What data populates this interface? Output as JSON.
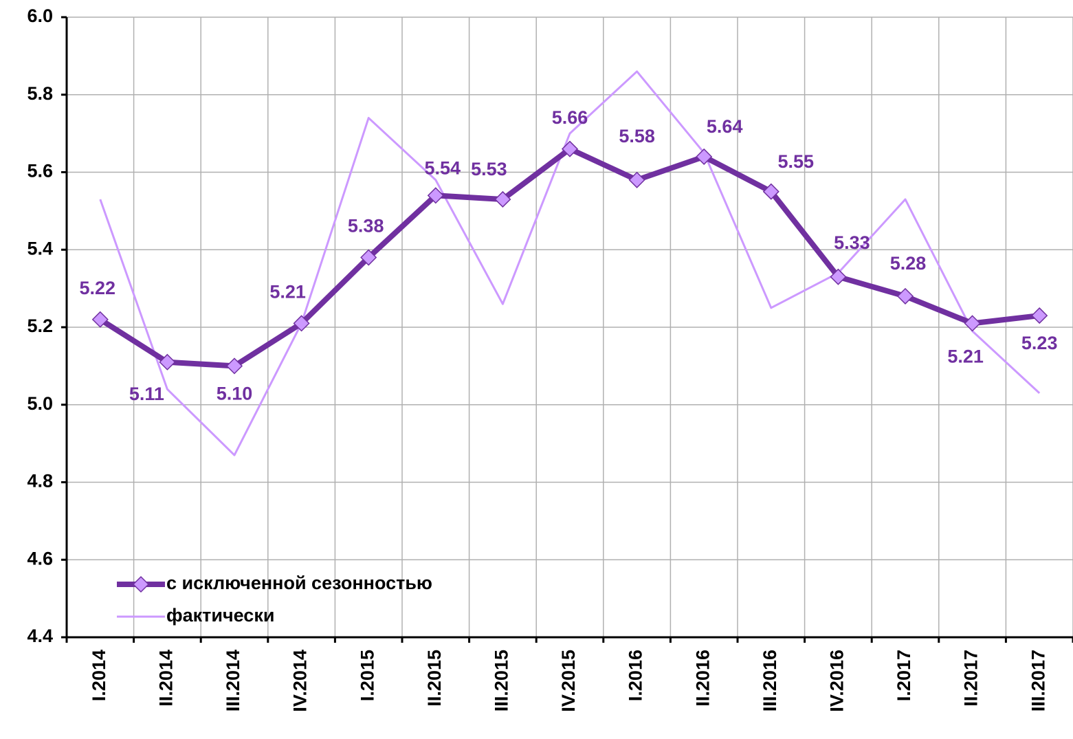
{
  "chart_data": {
    "type": "line",
    "categories": [
      "I.2014",
      "II.2014",
      "III.2014",
      "IV.2014",
      "I.2015",
      "II.2015",
      "III.2015",
      "IV.2015",
      "I.2016",
      "II.2016",
      "III.2016",
      "IV.2016",
      "I.2017",
      "II.2017",
      "III.2017"
    ],
    "series": [
      {
        "name": "с исключенной сезонностью",
        "color": "#7030a0",
        "marker_color": "#cc99ff",
        "values": [
          5.22,
          5.11,
          5.1,
          5.21,
          5.38,
          5.54,
          5.53,
          5.66,
          5.58,
          5.64,
          5.55,
          5.33,
          5.28,
          5.21,
          5.23
        ],
        "value_labels": [
          "5.22",
          "5.11",
          "5.10",
          "5.21",
          "5.38",
          "5.54",
          "5.53",
          "5.66",
          "5.58",
          "5.64",
          "5.55",
          "5.33",
          "5.28",
          "5.21",
          "5.23"
        ]
      },
      {
        "name": "фактически",
        "color": "#cc99ff",
        "values": [
          5.53,
          5.04,
          4.87,
          5.21,
          5.74,
          5.58,
          5.26,
          5.7,
          5.86,
          5.65,
          5.25,
          5.34,
          5.53,
          5.19,
          5.03
        ]
      }
    ],
    "ylim": [
      4.4,
      6.0
    ],
    "yticks": [
      {
        "value": 4.4,
        "label": "4.4"
      },
      {
        "value": 4.6,
        "label": "4.6"
      },
      {
        "value": 4.8,
        "label": "4.8"
      },
      {
        "value": 5.0,
        "label": "5.0"
      },
      {
        "value": 5.2,
        "label": "5.2"
      },
      {
        "value": 5.4,
        "label": "5.4"
      },
      {
        "value": 5.6,
        "label": "5.6"
      },
      {
        "value": 5.8,
        "label": "5.8"
      },
      {
        "value": 6.0,
        "label": "6.0"
      }
    ],
    "grid": true,
    "legend": "lower left"
  }
}
